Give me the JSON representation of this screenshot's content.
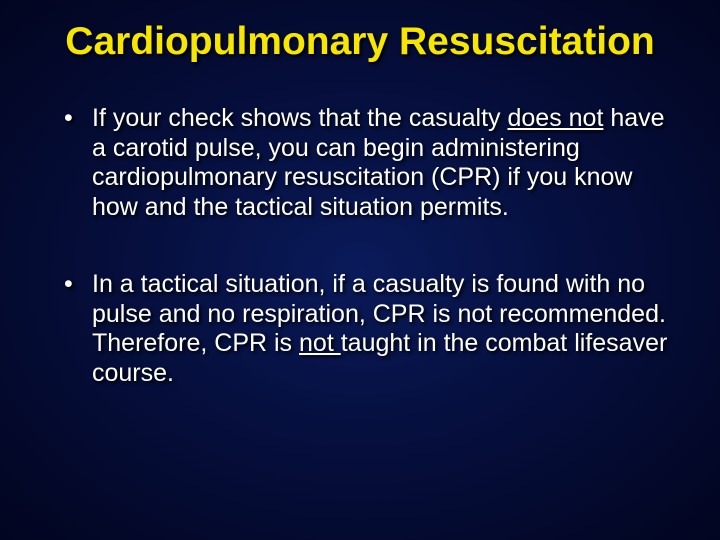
{
  "slide": {
    "title": "Cardiopulmonary Resuscitation",
    "title_color": "#f6e600",
    "body_color": "#ffffff",
    "background": {
      "gradient_center": "#0a1a5a",
      "gradient_mid": "#061040",
      "gradient_edge": "#020520"
    },
    "title_fontsize": 39,
    "body_fontsize": 25,
    "shadow_color": "#000000",
    "bullets": [
      {
        "pre": "If your check shows that the casualty ",
        "u1": "does not",
        "post": " have a carotid pulse, you can begin administering cardiopulmonary resuscitation (CPR) if you know how and the tactical situation permits."
      },
      {
        "pre": "In a tactical situation, if a casualty is found with no pulse and no respiration, CPR is not recommended.  Therefore, CPR is ",
        "u1": "not ",
        "post": "taught in the combat lifesaver course."
      }
    ]
  }
}
